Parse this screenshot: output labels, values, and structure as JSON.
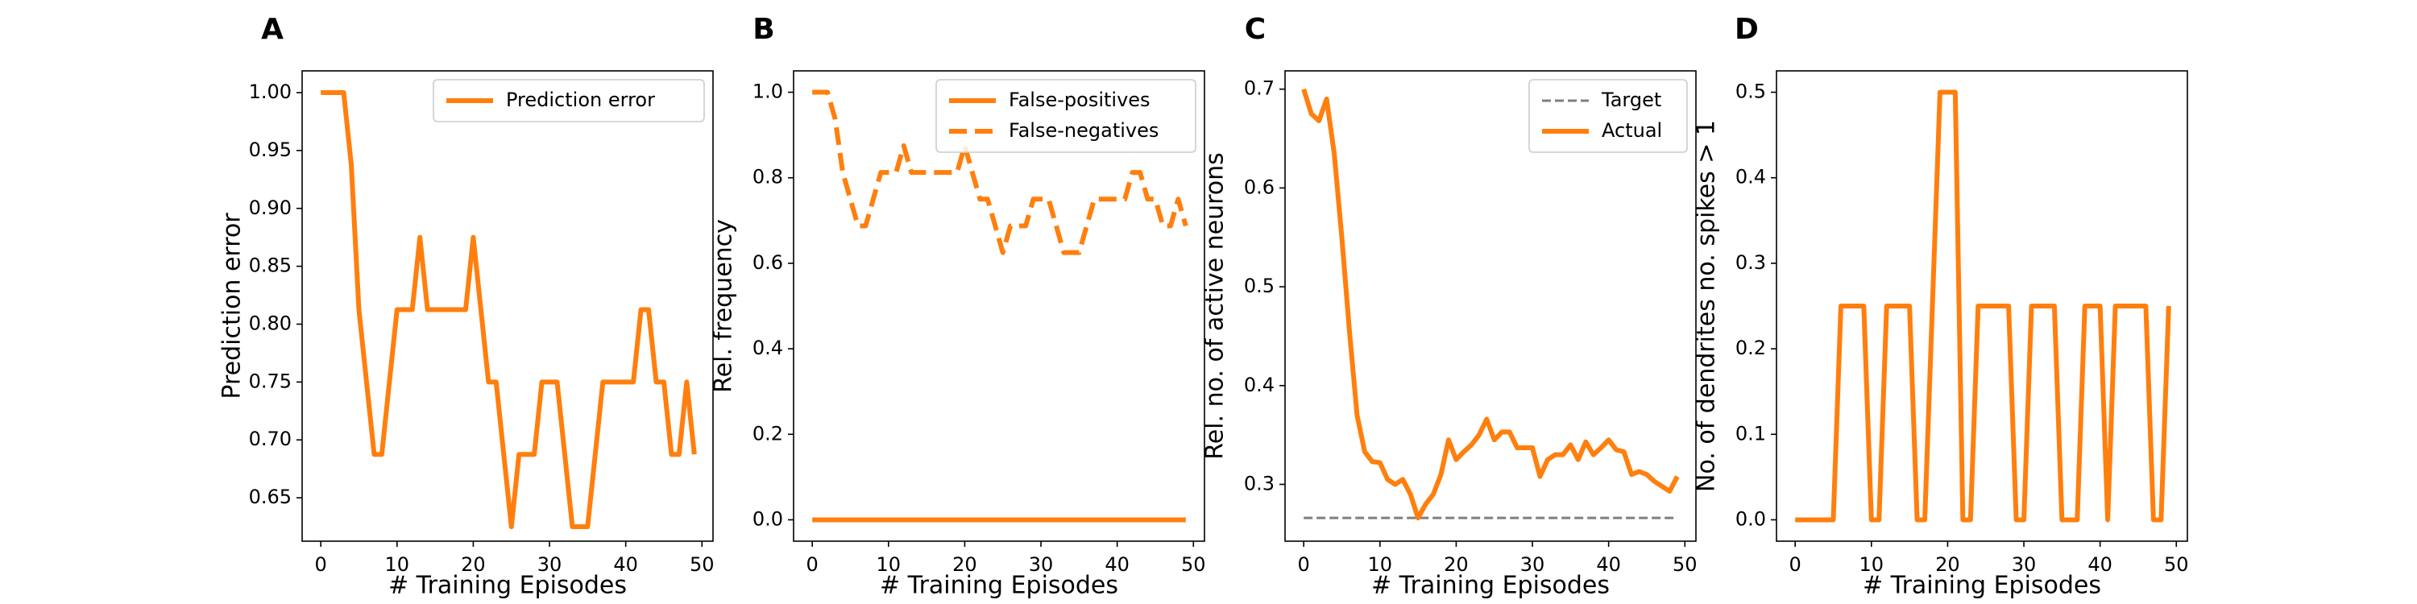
{
  "colors": {
    "series": "#ff7f0e",
    "target": "#7f7f7f",
    "axis": "#000000",
    "legend_border": "#cccccc"
  },
  "chart_data": [
    {
      "panel": "A",
      "type": "line",
      "xlabel": "# Training Episodes",
      "ylabel": "Prediction error",
      "xlim": [
        -2.45,
        51.45
      ],
      "ylim": [
        0.6125,
        1.0188
      ],
      "xticks": [
        "0",
        "10",
        "20",
        "30",
        "40",
        "50"
      ],
      "xtick_values": [
        0,
        10,
        20,
        30,
        40,
        50
      ],
      "yticks": [
        "0.65",
        "0.70",
        "0.75",
        "0.80",
        "0.85",
        "0.90",
        "0.95",
        "1.00"
      ],
      "ytick_values": [
        0.65,
        0.7,
        0.75,
        0.8,
        0.85,
        0.9,
        0.95,
        1.0
      ],
      "legend_position": "top-right",
      "series": [
        {
          "name": "Prediction error",
          "style": "solid",
          "x": [
            0,
            1,
            2,
            3,
            4,
            5,
            6,
            7,
            8,
            9,
            10,
            11,
            12,
            13,
            14,
            15,
            16,
            17,
            18,
            19,
            20,
            21,
            22,
            23,
            24,
            25,
            26,
            27,
            28,
            29,
            30,
            31,
            32,
            33,
            34,
            35,
            36,
            37,
            38,
            39,
            40,
            41,
            42,
            43,
            44,
            45,
            46,
            47,
            48,
            49
          ],
          "y": [
            1.0,
            1.0,
            1.0,
            1.0,
            0.9375,
            0.8125,
            0.75,
            0.6875,
            0.6875,
            0.75,
            0.8125,
            0.8125,
            0.8125,
            0.875,
            0.8125,
            0.8125,
            0.8125,
            0.8125,
            0.8125,
            0.8125,
            0.875,
            0.8125,
            0.75,
            0.75,
            0.6875,
            0.625,
            0.6875,
            0.6875,
            0.6875,
            0.75,
            0.75,
            0.75,
            0.6875,
            0.625,
            0.625,
            0.625,
            0.6875,
            0.75,
            0.75,
            0.75,
            0.75,
            0.75,
            0.8125,
            0.8125,
            0.75,
            0.75,
            0.6875,
            0.6875,
            0.75,
            0.6875
          ]
        }
      ]
    },
    {
      "panel": "B",
      "type": "line",
      "xlabel": "# Training Episodes",
      "ylabel": "Rel. frequency",
      "xlim": [
        -2.45,
        51.45
      ],
      "ylim": [
        -0.05,
        1.05
      ],
      "xticks": [
        "0",
        "10",
        "20",
        "30",
        "40",
        "50"
      ],
      "xtick_values": [
        0,
        10,
        20,
        30,
        40,
        50
      ],
      "yticks": [
        "0.0",
        "0.2",
        "0.4",
        "0.6",
        "0.8",
        "1.0"
      ],
      "ytick_values": [
        0.0,
        0.2,
        0.4,
        0.6,
        0.8,
        1.0
      ],
      "legend_position": "top-right",
      "series": [
        {
          "name": "False-positives",
          "style": "solid",
          "x": [
            0,
            1,
            2,
            3,
            4,
            5,
            6,
            7,
            8,
            9,
            10,
            11,
            12,
            13,
            14,
            15,
            16,
            17,
            18,
            19,
            20,
            21,
            22,
            23,
            24,
            25,
            26,
            27,
            28,
            29,
            30,
            31,
            32,
            33,
            34,
            35,
            36,
            37,
            38,
            39,
            40,
            41,
            42,
            43,
            44,
            45,
            46,
            47,
            48,
            49
          ],
          "y": [
            0,
            0,
            0,
            0,
            0,
            0,
            0,
            0,
            0,
            0,
            0,
            0,
            0,
            0,
            0,
            0,
            0,
            0,
            0,
            0,
            0,
            0,
            0,
            0,
            0,
            0,
            0,
            0,
            0,
            0,
            0,
            0,
            0,
            0,
            0,
            0,
            0,
            0,
            0,
            0,
            0,
            0,
            0,
            0,
            0,
            0,
            0,
            0,
            0,
            0
          ]
        },
        {
          "name": "False-negatives",
          "style": "dashed",
          "x": [
            0,
            1,
            2,
            3,
            4,
            5,
            6,
            7,
            8,
            9,
            10,
            11,
            12,
            13,
            14,
            15,
            16,
            17,
            18,
            19,
            20,
            21,
            22,
            23,
            24,
            25,
            26,
            27,
            28,
            29,
            30,
            31,
            32,
            33,
            34,
            35,
            36,
            37,
            38,
            39,
            40,
            41,
            42,
            43,
            44,
            45,
            46,
            47,
            48,
            49
          ],
          "y": [
            1.0,
            1.0,
            1.0,
            0.9375,
            0.8125,
            0.75,
            0.6875,
            0.6875,
            0.75,
            0.8125,
            0.8125,
            0.8125,
            0.875,
            0.8125,
            0.8125,
            0.8125,
            0.8125,
            0.8125,
            0.8125,
            0.8125,
            0.875,
            0.8125,
            0.75,
            0.75,
            0.6875,
            0.625,
            0.6875,
            0.6875,
            0.6875,
            0.75,
            0.75,
            0.75,
            0.6875,
            0.625,
            0.625,
            0.625,
            0.6875,
            0.75,
            0.75,
            0.75,
            0.75,
            0.75,
            0.8125,
            0.8125,
            0.75,
            0.75,
            0.6875,
            0.6875,
            0.75,
            0.6875
          ]
        }
      ]
    },
    {
      "panel": "C",
      "type": "line",
      "xlabel": "# Training Episodes",
      "ylabel": "Rel. no. of active neurons",
      "xlim": [
        -2.45,
        51.45
      ],
      "ylim": [
        0.2425,
        0.7185
      ],
      "xticks": [
        "0",
        "10",
        "20",
        "30",
        "40",
        "50"
      ],
      "xtick_values": [
        0,
        10,
        20,
        30,
        40,
        50
      ],
      "yticks": [
        "0.3",
        "0.4",
        "0.5",
        "0.6",
        "0.7"
      ],
      "ytick_values": [
        0.3,
        0.4,
        0.5,
        0.6,
        0.7
      ],
      "legend_position": "top-right",
      "series": [
        {
          "name": "Target",
          "style": "dashed-thin",
          "x": [
            0,
            49
          ],
          "y": [
            0.266,
            0.266
          ]
        },
        {
          "name": "Actual",
          "style": "solid",
          "x": [
            0,
            1,
            2,
            3,
            4,
            5,
            6,
            7,
            8,
            9,
            10,
            11,
            12,
            13,
            14,
            15,
            16,
            17,
            18,
            19,
            20,
            21,
            22,
            23,
            24,
            25,
            26,
            27,
            28,
            29,
            30,
            31,
            32,
            33,
            34,
            35,
            36,
            37,
            38,
            39,
            40,
            41,
            42,
            43,
            44,
            45,
            46,
            47,
            48,
            49
          ],
          "y": [
            0.7,
            0.675,
            0.668,
            0.69,
            0.635,
            0.55,
            0.455,
            0.37,
            0.333,
            0.323,
            0.322,
            0.305,
            0.3,
            0.305,
            0.29,
            0.266,
            0.28,
            0.29,
            0.31,
            0.345,
            0.325,
            0.333,
            0.34,
            0.35,
            0.366,
            0.345,
            0.353,
            0.353,
            0.337,
            0.337,
            0.337,
            0.308,
            0.325,
            0.33,
            0.33,
            0.34,
            0.325,
            0.343,
            0.33,
            0.337,
            0.345,
            0.335,
            0.333,
            0.31,
            0.313,
            0.31,
            0.303,
            0.298,
            0.293,
            0.308
          ]
        }
      ]
    },
    {
      "panel": "D",
      "type": "line",
      "xlabel": "# Training Episodes",
      "ylabel": "No. of dendrites no. spikes > 1",
      "xlim": [
        -2.45,
        51.45
      ],
      "ylim": [
        -0.025,
        0.525
      ],
      "xticks": [
        "0",
        "10",
        "20",
        "30",
        "40",
        "50"
      ],
      "xtick_values": [
        0,
        10,
        20,
        30,
        40,
        50
      ],
      "yticks": [
        "0.0",
        "0.1",
        "0.2",
        "0.3",
        "0.4",
        "0.5"
      ],
      "ytick_values": [
        0.0,
        0.1,
        0.2,
        0.3,
        0.4,
        0.5
      ],
      "legend_position": "none",
      "series": [
        {
          "name": "",
          "style": "solid",
          "x": [
            0,
            1,
            2,
            3,
            4,
            5,
            6,
            7,
            8,
            9,
            10,
            11,
            12,
            13,
            14,
            15,
            16,
            17,
            18,
            19,
            20,
            21,
            22,
            23,
            24,
            25,
            26,
            27,
            28,
            29,
            30,
            31,
            32,
            33,
            34,
            35,
            36,
            37,
            38,
            39,
            40,
            41,
            42,
            43,
            44,
            45,
            46,
            47,
            48,
            49
          ],
          "y": [
            0,
            0,
            0,
            0,
            0,
            0,
            0.25,
            0.25,
            0.25,
            0.25,
            0,
            0,
            0.25,
            0.25,
            0.25,
            0.25,
            0,
            0,
            0.25,
            0.5,
            0.5,
            0.5,
            0,
            0,
            0.25,
            0.25,
            0.25,
            0.25,
            0.25,
            0,
            0,
            0.25,
            0.25,
            0.25,
            0.25,
            0,
            0,
            0,
            0.25,
            0.25,
            0.25,
            0,
            0.25,
            0.25,
            0.25,
            0.25,
            0.25,
            0,
            0,
            0.25
          ]
        }
      ]
    }
  ]
}
